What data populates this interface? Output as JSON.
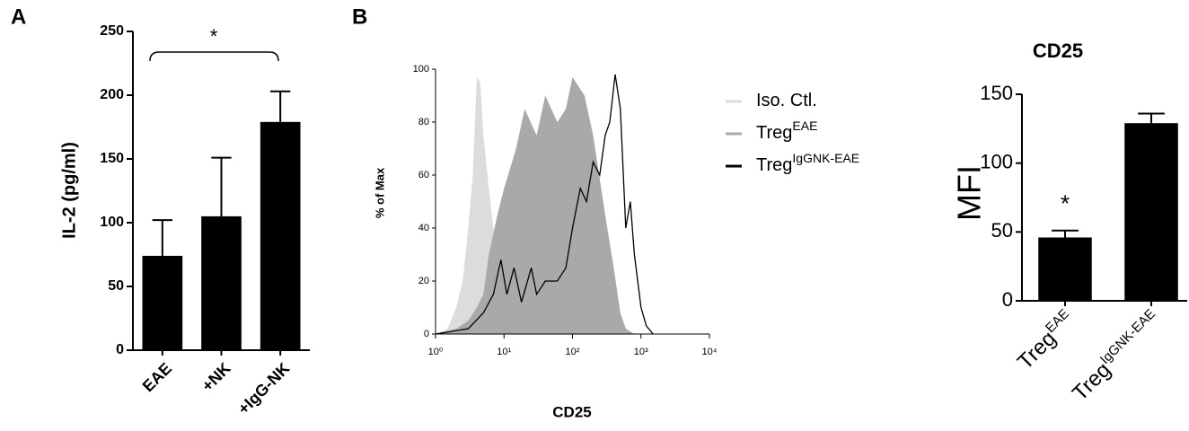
{
  "chart_data": [
    {
      "type": "bar",
      "panel_label": "A",
      "ylabel": "IL-2 (pg/ml)",
      "categories": [
        "EAE",
        "+NK",
        "+IgG-NK"
      ],
      "values": [
        74,
        105,
        179
      ],
      "errors": [
        28,
        46,
        24
      ],
      "color": "#000000",
      "ylim": [
        0,
        250
      ],
      "yticks": [
        0,
        50,
        100,
        150,
        200,
        250
      ],
      "annotation": "*",
      "grid": false
    },
    {
      "type": "area",
      "panel_label": "B",
      "ylabel": "% of Max",
      "xlabel": "CD25",
      "xscale": "log",
      "xlim": [
        1,
        10000
      ],
      "xticks": [
        {
          "value": 1,
          "label": "10⁰"
        },
        {
          "value": 10,
          "label": "10¹"
        },
        {
          "value": 100,
          "label": "10²"
        },
        {
          "value": 1000,
          "label": "10³"
        },
        {
          "value": 10000,
          "label": "10⁴"
        }
      ],
      "ylim": [
        0,
        100
      ],
      "yticks": [
        0,
        20,
        40,
        60,
        80,
        100
      ],
      "grid": false,
      "series": [
        {
          "name": "Iso. Ctl.",
          "color": "#dcdcdc",
          "style": "fill",
          "x": [
            1,
            1.5,
            2,
            2.5,
            3,
            3.5,
            4,
            4.5,
            5,
            6,
            7,
            8,
            10,
            15,
            20
          ],
          "values": [
            0,
            2,
            10,
            20,
            40,
            60,
            97,
            95,
            75,
            55,
            40,
            20,
            5,
            1,
            0
          ]
        },
        {
          "name": "Treg",
          "name_superscript": "EAE",
          "color": "#a9a9a9",
          "style": "fill",
          "x": [
            1,
            2,
            3,
            4,
            5,
            6,
            8,
            10,
            15,
            20,
            30,
            40,
            60,
            80,
            100,
            150,
            200,
            300,
            400,
            500,
            600,
            800
          ],
          "values": [
            0,
            2,
            5,
            10,
            15,
            30,
            45,
            55,
            70,
            85,
            75,
            90,
            80,
            85,
            97,
            90,
            75,
            45,
            25,
            8,
            2,
            0
          ]
        },
        {
          "name": "Treg",
          "name_superscript": "IgGNK-EAE",
          "color": "#000000",
          "style": "line",
          "x": [
            1,
            3,
            5,
            7,
            9,
            11,
            14,
            18,
            25,
            30,
            40,
            60,
            80,
            100,
            130,
            160,
            200,
            250,
            300,
            350,
            420,
            500,
            600,
            700,
            800,
            1000,
            1200,
            1500
          ],
          "values": [
            0,
            2,
            8,
            15,
            28,
            15,
            25,
            12,
            25,
            15,
            20,
            20,
            25,
            40,
            55,
            50,
            65,
            60,
            75,
            80,
            98,
            85,
            40,
            50,
            30,
            10,
            3,
            0
          ]
        }
      ]
    },
    {
      "type": "bar",
      "title": "CD25",
      "ylabel": "MFI",
      "categories": [
        {
          "text": "Treg",
          "superscript": "EAE"
        },
        {
          "text": "Treg",
          "superscript": "IgGNK-EAE"
        }
      ],
      "values": [
        46,
        129
      ],
      "errors": [
        5,
        7
      ],
      "color": "#000000",
      "ylim": [
        0,
        150
      ],
      "yticks": [
        0,
        50,
        100,
        150
      ],
      "annotation": "*",
      "grid": false
    }
  ]
}
